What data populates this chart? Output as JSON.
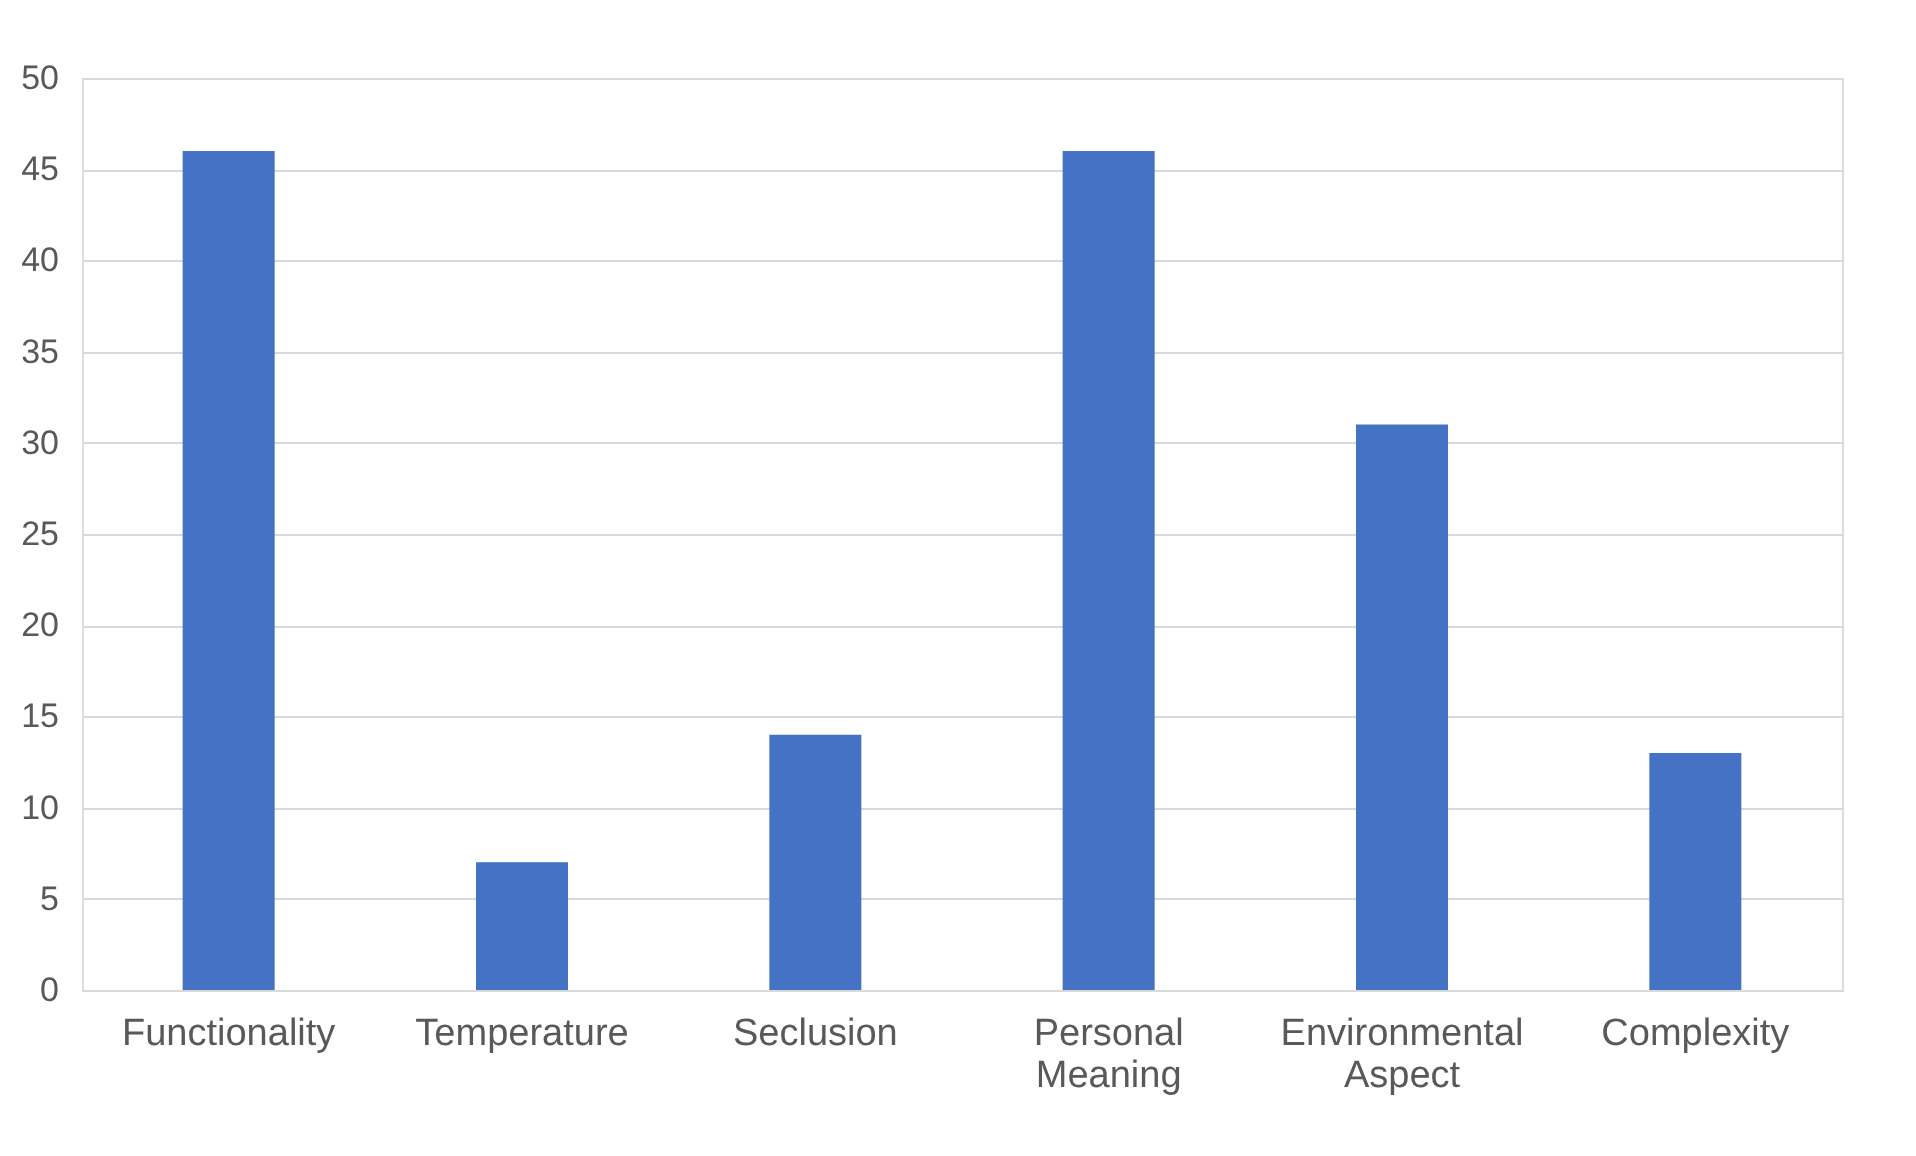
{
  "chart_data": {
    "type": "bar",
    "categories": [
      "Functionality",
      "Temperature",
      "Seclusion",
      "Personal Meaning",
      "Environmental Aspect",
      "Complexity"
    ],
    "values": [
      46,
      7,
      14,
      46,
      31,
      13
    ],
    "color": "#4472c4",
    "ylim": [
      0,
      50
    ],
    "yticks": [
      0,
      5,
      10,
      15,
      20,
      25,
      30,
      35,
      40,
      45,
      50
    ],
    "grid": "y"
  }
}
